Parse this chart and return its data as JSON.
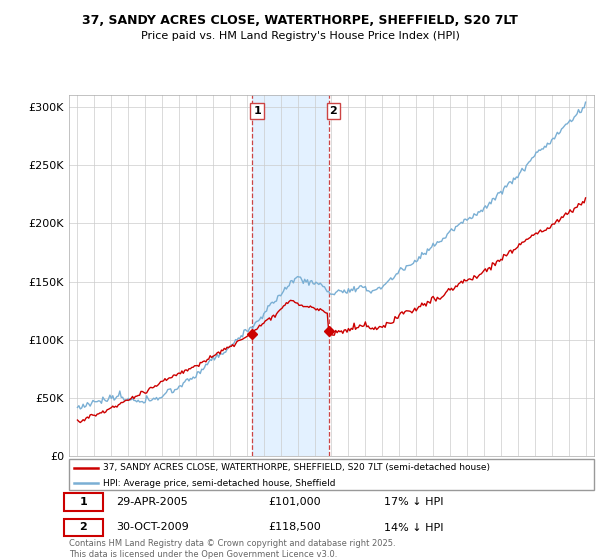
{
  "title_line1": "37, SANDY ACRES CLOSE, WATERTHORPE, SHEFFIELD, S20 7LT",
  "title_line2": "Price paid vs. HM Land Registry's House Price Index (HPI)",
  "purchase1_date": "29-APR-2005",
  "purchase1_price": 101000,
  "purchase1_price_str": "£101,000",
  "purchase1_hpi_diff": "17% ↓ HPI",
  "purchase2_date": "30-OCT-2009",
  "purchase2_price": 118500,
  "purchase2_price_str": "£118,500",
  "purchase2_hpi_diff": "14% ↓ HPI",
  "legend_label_red": "37, SANDY ACRES CLOSE, WATERTHORPE, SHEFFIELD, S20 7LT (semi-detached house)",
  "legend_label_blue": "HPI: Average price, semi-detached house, Sheffield",
  "footer": "Contains HM Land Registry data © Crown copyright and database right 2025.\nThis data is licensed under the Open Government Licence v3.0.",
  "red_color": "#cc0000",
  "blue_color": "#7aafd4",
  "shading_color": "#ddeeff",
  "ylim_min": 0,
  "ylim_max": 310000,
  "yticks": [
    0,
    50000,
    100000,
    150000,
    200000,
    250000,
    300000
  ],
  "ytick_labels": [
    "£0",
    "£50K",
    "£100K",
    "£150K",
    "£200K",
    "£250K",
    "£300K"
  ],
  "purchase1_year": 2005.33,
  "purchase2_year": 2009.83,
  "bg_color": "#ffffff",
  "grid_color": "#cccccc",
  "xlim_min": 1994.5,
  "xlim_max": 2025.5
}
